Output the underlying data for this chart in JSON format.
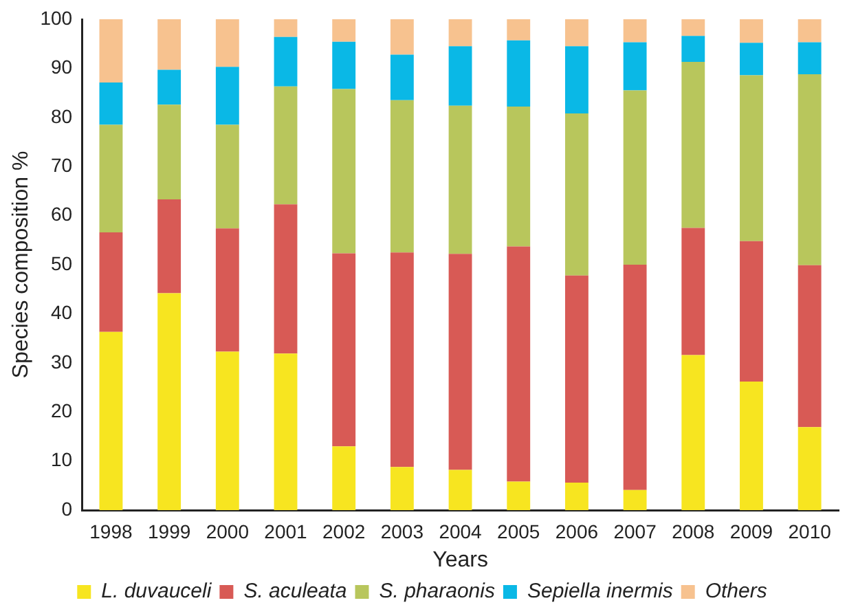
{
  "chart_data": {
    "type": "bar",
    "stacked": true,
    "xlabel": "Years",
    "ylabel": "Species composition %",
    "categories": [
      "1998",
      "1999",
      "2000",
      "2001",
      "2002",
      "2003",
      "2004",
      "2005",
      "2006",
      "2007",
      "2008",
      "2009",
      "2010"
    ],
    "series": [
      {
        "name": "L. duvauceli",
        "color": "#f7e520",
        "values": [
          36.3,
          44.2,
          32.3,
          31.9,
          13.0,
          8.8,
          8.2,
          5.8,
          5.6,
          4.1,
          31.6,
          26.2,
          16.9
        ]
      },
      {
        "name": "S. aculeata",
        "color": "#d85a55",
        "values": [
          20.3,
          19.1,
          25.1,
          30.4,
          39.3,
          43.7,
          44.0,
          47.9,
          42.2,
          45.9,
          25.9,
          28.6,
          33.0
        ]
      },
      {
        "name": "S. pharaonis",
        "color": "#b8c65c",
        "values": [
          21.9,
          19.3,
          21.1,
          24.0,
          33.5,
          31.0,
          30.2,
          28.5,
          33.0,
          35.5,
          33.8,
          33.8,
          38.9
        ]
      },
      {
        "name": "Sepiella inermis",
        "color": "#0ab8e6",
        "values": [
          8.6,
          7.1,
          11.8,
          10.1,
          9.6,
          9.3,
          12.1,
          13.5,
          13.7,
          9.8,
          5.3,
          6.6,
          6.5
        ]
      },
      {
        "name": "Others",
        "color": "#f7c28f",
        "values": [
          12.9,
          10.3,
          9.7,
          3.6,
          4.6,
          7.2,
          5.5,
          4.3,
          5.5,
          4.7,
          3.4,
          4.8,
          4.7
        ]
      }
    ],
    "ylim": [
      0,
      100
    ],
    "yticks": [
      0,
      10,
      20,
      30,
      40,
      50,
      60,
      70,
      80,
      90,
      100
    ],
    "grid": false,
    "legend": "bottom"
  }
}
